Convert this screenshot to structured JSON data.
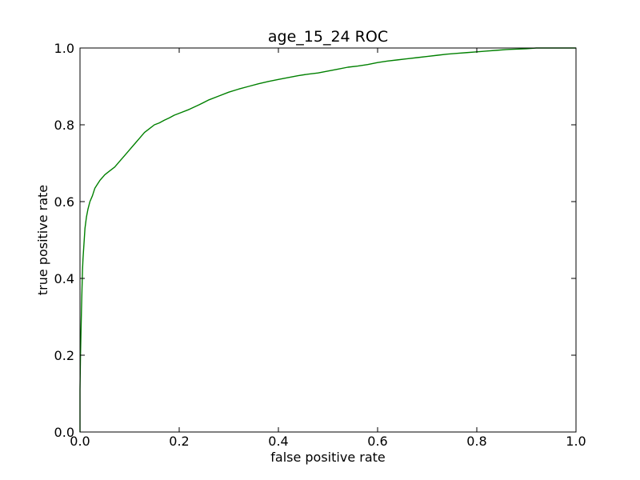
{
  "chart_data": {
    "type": "line",
    "title": "age_15_24 ROC",
    "xlabel": "false positive rate",
    "ylabel": "true positive rate",
    "xlim": [
      0.0,
      1.0
    ],
    "ylim": [
      0.0,
      1.0
    ],
    "grid": false,
    "legend": "none",
    "x_ticks": [
      "0.0",
      "0.2",
      "0.4",
      "0.6",
      "0.8",
      "1.0"
    ],
    "y_ticks": [
      "0.0",
      "0.2",
      "0.4",
      "0.6",
      "0.8",
      "1.0"
    ],
    "colors": {
      "series": "#008000",
      "axes": "#000000",
      "background": "#ffffff"
    },
    "series": [
      {
        "x": [
          0.0,
          0.0,
          0.001,
          0.002,
          0.003,
          0.004,
          0.005,
          0.006,
          0.008,
          0.01,
          0.013,
          0.016,
          0.02,
          0.025,
          0.03,
          0.035,
          0.04,
          0.05,
          0.06,
          0.07,
          0.08,
          0.09,
          0.1,
          0.11,
          0.12,
          0.13,
          0.14,
          0.15,
          0.16,
          0.17,
          0.18,
          0.19,
          0.2,
          0.22,
          0.24,
          0.26,
          0.28,
          0.3,
          0.32,
          0.34,
          0.36,
          0.38,
          0.4,
          0.42,
          0.44,
          0.46,
          0.48,
          0.5,
          0.52,
          0.54,
          0.56,
          0.58,
          0.6,
          0.62,
          0.64,
          0.66,
          0.68,
          0.7,
          0.72,
          0.74,
          0.76,
          0.78,
          0.8,
          0.82,
          0.84,
          0.86,
          0.88,
          0.9,
          0.92,
          0.95,
          1.0
        ],
        "y": [
          0.0,
          0.11,
          0.2,
          0.26,
          0.32,
          0.37,
          0.42,
          0.45,
          0.49,
          0.53,
          0.56,
          0.58,
          0.6,
          0.615,
          0.635,
          0.645,
          0.655,
          0.67,
          0.68,
          0.69,
          0.705,
          0.72,
          0.735,
          0.75,
          0.765,
          0.78,
          0.79,
          0.8,
          0.805,
          0.812,
          0.818,
          0.825,
          0.83,
          0.84,
          0.852,
          0.865,
          0.875,
          0.885,
          0.893,
          0.9,
          0.907,
          0.913,
          0.918,
          0.923,
          0.928,
          0.932,
          0.935,
          0.94,
          0.945,
          0.95,
          0.953,
          0.957,
          0.962,
          0.966,
          0.969,
          0.972,
          0.975,
          0.978,
          0.981,
          0.984,
          0.986,
          0.988,
          0.99,
          0.992,
          0.994,
          0.996,
          0.997,
          0.998,
          1.0,
          1.0,
          1.0
        ]
      }
    ]
  }
}
